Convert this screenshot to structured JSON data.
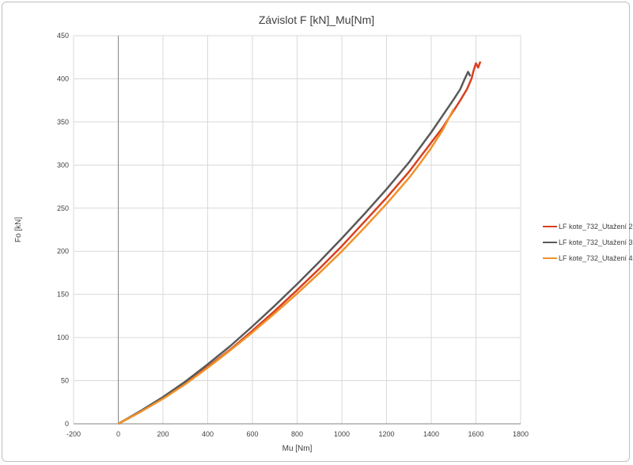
{
  "chart_data": {
    "type": "line",
    "title": "Závislot F [kN]_Mu[Nm]",
    "xlabel": "Mu [Nm]",
    "ylabel": "Fo [kN]",
    "xlim": [
      -200,
      1800
    ],
    "ylim": [
      0,
      450
    ],
    "xticks": [
      -200,
      0,
      200,
      400,
      600,
      800,
      1000,
      1200,
      1400,
      1600,
      1800
    ],
    "yticks": [
      0,
      50,
      100,
      150,
      200,
      250,
      300,
      350,
      400,
      450
    ],
    "grid": true,
    "legend_position": "right",
    "series": [
      {
        "name": "LF kote_732_Utažení 2",
        "color": "#d9401f",
        "points": [
          [
            0,
            0
          ],
          [
            100,
            14
          ],
          [
            200,
            30
          ],
          [
            300,
            47
          ],
          [
            400,
            66
          ],
          [
            500,
            86
          ],
          [
            600,
            108
          ],
          [
            700,
            131
          ],
          [
            800,
            155
          ],
          [
            900,
            180
          ],
          [
            1000,
            206
          ],
          [
            1100,
            234
          ],
          [
            1200,
            262
          ],
          [
            1300,
            292
          ],
          [
            1400,
            326
          ],
          [
            1450,
            343
          ],
          [
            1500,
            363
          ],
          [
            1530,
            375
          ],
          [
            1560,
            388
          ],
          [
            1580,
            400
          ],
          [
            1590,
            410
          ],
          [
            1600,
            418
          ],
          [
            1610,
            413
          ],
          [
            1620,
            420
          ]
        ]
      },
      {
        "name": "LF kote_732_Utažení 3",
        "color": "#595959",
        "points": [
          [
            0,
            0
          ],
          [
            100,
            15
          ],
          [
            200,
            31
          ],
          [
            300,
            49
          ],
          [
            400,
            69
          ],
          [
            500,
            90
          ],
          [
            600,
            113
          ],
          [
            700,
            137
          ],
          [
            800,
            162
          ],
          [
            900,
            188
          ],
          [
            1000,
            215
          ],
          [
            1100,
            243
          ],
          [
            1200,
            272
          ],
          [
            1300,
            303
          ],
          [
            1400,
            338
          ],
          [
            1450,
            357
          ],
          [
            1500,
            376
          ],
          [
            1530,
            388
          ],
          [
            1550,
            400
          ],
          [
            1565,
            408
          ],
          [
            1575,
            403
          ]
        ]
      },
      {
        "name": "LF kote_732_Utažení 4",
        "color": "#f0922b",
        "points": [
          [
            0,
            0
          ],
          [
            100,
            14
          ],
          [
            200,
            29
          ],
          [
            300,
            46
          ],
          [
            400,
            65
          ],
          [
            500,
            85
          ],
          [
            600,
            106
          ],
          [
            700,
            128
          ],
          [
            800,
            151
          ],
          [
            900,
            175
          ],
          [
            1000,
            200
          ],
          [
            1100,
            227
          ],
          [
            1200,
            255
          ],
          [
            1300,
            285
          ],
          [
            1350,
            302
          ],
          [
            1400,
            320
          ],
          [
            1450,
            340
          ],
          [
            1480,
            355
          ],
          [
            1500,
            365
          ]
        ]
      }
    ]
  }
}
